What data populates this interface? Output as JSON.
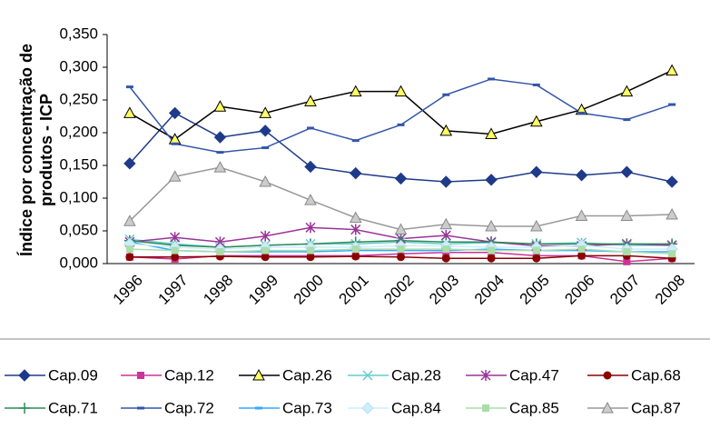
{
  "chart_data": {
    "type": "line",
    "y_label": [
      "Índice por concentração de",
      "produtos - ICP"
    ],
    "categories": [
      "1996",
      "1997",
      "1998",
      "1999",
      "2000",
      "2001",
      "2002",
      "2003",
      "2004",
      "2005",
      "2006",
      "2007",
      "2008"
    ],
    "ylim": [
      0,
      0.35
    ],
    "yticks": [
      {
        "value": 0,
        "label": "0,000"
      },
      {
        "value": 0.05,
        "label": "0,050"
      },
      {
        "value": 0.1,
        "label": "0,100"
      },
      {
        "value": 0.15,
        "label": "0,150"
      },
      {
        "value": 0.2,
        "label": "0,200"
      },
      {
        "value": 0.25,
        "label": "0,250"
      },
      {
        "value": 0.3,
        "label": "0,300"
      },
      {
        "value": 0.35,
        "label": "0,350"
      }
    ],
    "series": [
      {
        "name": "Cap.09",
        "color": "#1f3a8a",
        "marker": "diamond",
        "marker_color": "#1f3a8a",
        "values": [
          0.153,
          0.23,
          0.193,
          0.203,
          0.148,
          0.138,
          0.13,
          0.125,
          0.128,
          0.14,
          0.135,
          0.14,
          0.125
        ]
      },
      {
        "name": "Cap.12",
        "color": "#cc3399",
        "marker": "square",
        "marker_color": "#cc3399",
        "values": [
          0.01,
          0.007,
          0.012,
          0.012,
          0.012,
          0.012,
          0.015,
          0.017,
          0.017,
          0.012,
          0.012,
          0.003,
          0.008
        ]
      },
      {
        "name": "Cap.26",
        "color": "#000000",
        "marker": "triangle",
        "marker_color": "#ffff66",
        "values": [
          0.23,
          0.19,
          0.24,
          0.23,
          0.248,
          0.263,
          0.263,
          0.203,
          0.198,
          0.217,
          0.235,
          0.263,
          0.295
        ]
      },
      {
        "name": "Cap.28",
        "color": "#66cccc",
        "marker": "cross",
        "marker_color": "#66cccc",
        "values": [
          0.037,
          0.03,
          0.025,
          0.028,
          0.03,
          0.03,
          0.033,
          0.03,
          0.032,
          0.03,
          0.032,
          0.028,
          0.028
        ]
      },
      {
        "name": "Cap.47",
        "color": "#993399",
        "marker": "star",
        "marker_color": "#993399",
        "values": [
          0.033,
          0.04,
          0.033,
          0.042,
          0.055,
          0.052,
          0.038,
          0.043,
          0.033,
          0.027,
          0.027,
          0.03,
          0.028
        ]
      },
      {
        "name": "Cap.68",
        "color": "#8b0000",
        "marker": "circle",
        "marker_color": "#8b0000",
        "values": [
          0.01,
          0.01,
          0.011,
          0.01,
          0.01,
          0.011,
          0.01,
          0.008,
          0.008,
          0.008,
          0.012,
          0.012,
          0.008
        ]
      },
      {
        "name": "Cap.71",
        "color": "#2e8b57",
        "marker": "plus",
        "marker_color": "#2e8b57",
        "values": [
          0.035,
          0.028,
          0.025,
          0.028,
          0.03,
          0.033,
          0.035,
          0.033,
          0.033,
          0.03,
          0.03,
          0.03,
          0.03
        ]
      },
      {
        "name": "Cap.72",
        "color": "#3355aa",
        "marker": "dash",
        "marker_color": "#3355aa",
        "values": [
          0.27,
          0.183,
          0.17,
          0.177,
          0.207,
          0.188,
          0.212,
          0.258,
          0.282,
          0.273,
          0.23,
          0.22,
          0.243
        ]
      },
      {
        "name": "Cap.73",
        "color": "#33aaff",
        "marker": "dash",
        "marker_color": "#33aaff",
        "values": [
          0.033,
          0.02,
          0.018,
          0.018,
          0.018,
          0.02,
          0.02,
          0.02,
          0.022,
          0.02,
          0.02,
          0.018,
          0.018
        ]
      },
      {
        "name": "Cap.84",
        "color": "#cceeff",
        "marker": "diamond",
        "marker_color": "#cceeff",
        "values": [
          0.03,
          0.025,
          0.022,
          0.025,
          0.025,
          0.025,
          0.027,
          0.027,
          0.025,
          0.025,
          0.028,
          0.022,
          0.022
        ]
      },
      {
        "name": "Cap.85",
        "color": "#aaddaa",
        "marker": "square",
        "marker_color": "#aaddaa",
        "values": [
          0.022,
          0.02,
          0.018,
          0.02,
          0.02,
          0.022,
          0.022,
          0.022,
          0.02,
          0.02,
          0.022,
          0.018,
          0.015
        ]
      },
      {
        "name": "Cap.87",
        "color": "#999999",
        "marker": "triangle",
        "marker_color": "#cccccc",
        "values": [
          0.065,
          0.133,
          0.147,
          0.125,
          0.097,
          0.07,
          0.052,
          0.06,
          0.057,
          0.057,
          0.073,
          0.073,
          0.075
        ]
      }
    ]
  }
}
